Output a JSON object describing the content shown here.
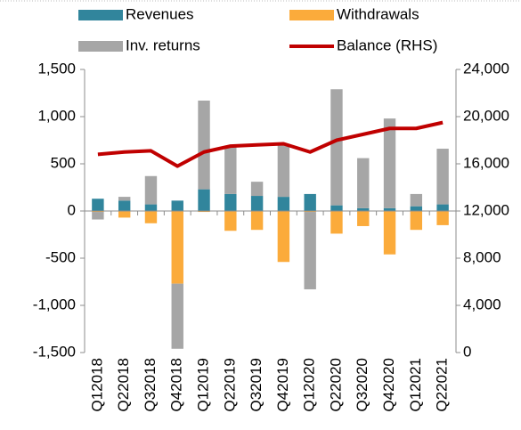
{
  "chart_data": {
    "type": "bar",
    "stacked": true,
    "categories": [
      "Q12018",
      "Q22018",
      "Q32018",
      "Q42018",
      "Q12019",
      "Q22019",
      "Q32019",
      "Q42019",
      "Q12020",
      "Q22020",
      "Q32020",
      "Q42020",
      "Q12021",
      "Q22021"
    ],
    "series": [
      {
        "name": "Revenues",
        "type": "bar",
        "color": "#31859c",
        "values": [
          130,
          110,
          70,
          110,
          230,
          180,
          160,
          150,
          180,
          60,
          30,
          30,
          50,
          70
        ]
      },
      {
        "name": "Withdrawals",
        "type": "bar",
        "color": "#fbab3b",
        "values": [
          -10,
          -70,
          -130,
          -770,
          -10,
          -210,
          -200,
          -540,
          -10,
          -240,
          -160,
          -460,
          -200,
          -150
        ]
      },
      {
        "name": "Inv. returns",
        "type": "bar",
        "color": "#a6a6a6",
        "values": [
          -80,
          40,
          300,
          -690,
          940,
          500,
          150,
          550,
          -820,
          1230,
          530,
          950,
          130,
          590
        ]
      },
      {
        "name": "Balance (RHS)",
        "type": "line",
        "axis": "y2",
        "color": "#c00000",
        "values": [
          16800,
          17000,
          17100,
          15800,
          17000,
          17500,
          17600,
          17700,
          17000,
          18000,
          18500,
          19000,
          19000,
          19500
        ]
      }
    ],
    "ylim": [
      -1500,
      1500
    ],
    "yticks": [
      {
        "value": -1500,
        "label": "-1,500"
      },
      {
        "value": -1000,
        "label": "-1,000"
      },
      {
        "value": -500,
        "label": "-500"
      },
      0,
      500,
      {
        "value": 1000,
        "label": "1,000"
      },
      {
        "value": 1500,
        "label": "1,500"
      }
    ],
    "y2lim": [
      0,
      24000
    ],
    "y2ticks": [
      0,
      {
        "value": 4000,
        "label": "4,000"
      },
      {
        "value": 8000,
        "label": "8,000"
      },
      {
        "value": 12000,
        "label": "12,000"
      },
      {
        "value": 16000,
        "label": "16,000"
      },
      {
        "value": 20000,
        "label": "20,000"
      },
      {
        "value": 24000,
        "label": "24,000"
      }
    ],
    "grid": false,
    "legend": "top"
  }
}
